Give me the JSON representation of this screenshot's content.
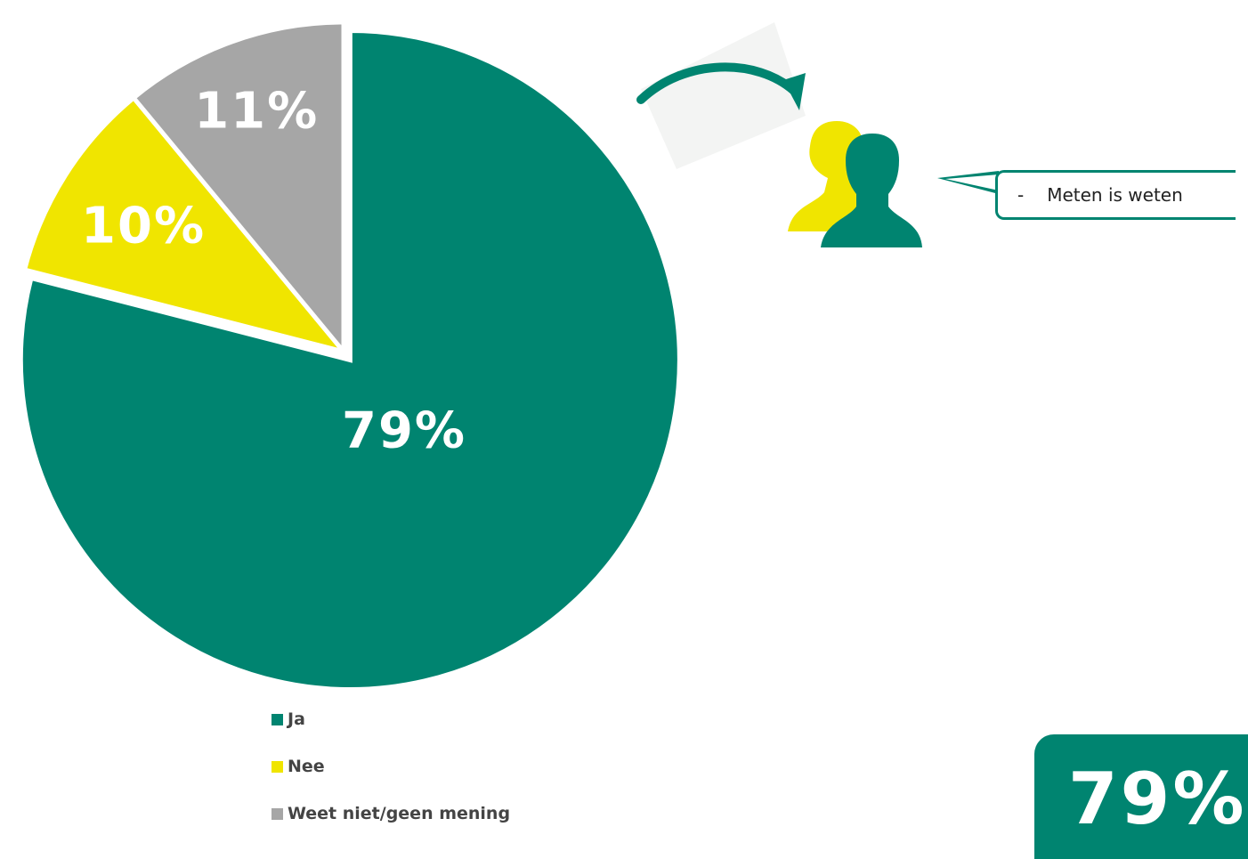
{
  "chart_data": {
    "type": "pie",
    "categories": [
      "Ja",
      "Nee",
      "Weet niet/geen mening"
    ],
    "values": [
      79,
      10,
      11
    ],
    "labels": [
      "79%",
      "10%",
      "11%"
    ],
    "colors": [
      "#008470",
      "#F0E500",
      "#A6A6A6"
    ],
    "legend_position": "bottom"
  },
  "callout": {
    "dash": "-",
    "text": "Meten is weten"
  },
  "highlight": {
    "value": "79%"
  },
  "icons": [
    "curved-arrow-icon",
    "people-icon"
  ]
}
